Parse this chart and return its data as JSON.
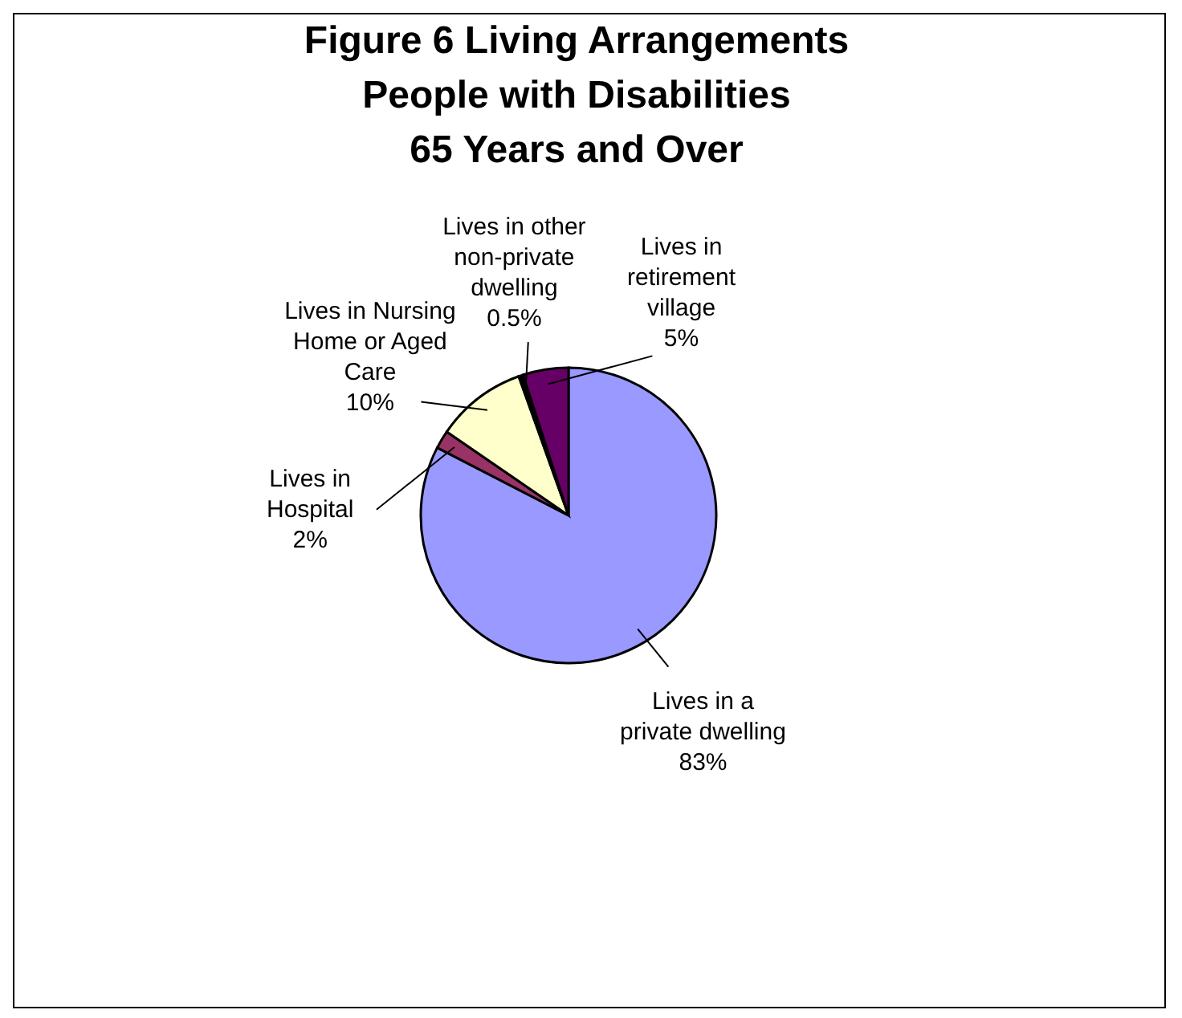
{
  "chart_data": {
    "type": "pie",
    "title": [
      "Figure 6  Living Arrangements",
      "People with Disabilities",
      "65 Years and Over"
    ],
    "categories": [
      "Lives in a private dwelling",
      "Lives in Hospital",
      "Lives in Nursing Home or Aged Care",
      "Lives in other non-private dwelling",
      "Lives in retirement village"
    ],
    "values": [
      83,
      2,
      10,
      0.5,
      5
    ],
    "colors": [
      "#9999ff",
      "#993366",
      "#ffffcc",
      "#000000",
      "#660066"
    ],
    "value_labels": [
      "83%",
      "2%",
      "10%",
      "0.5%",
      "5%"
    ],
    "legend": false
  }
}
